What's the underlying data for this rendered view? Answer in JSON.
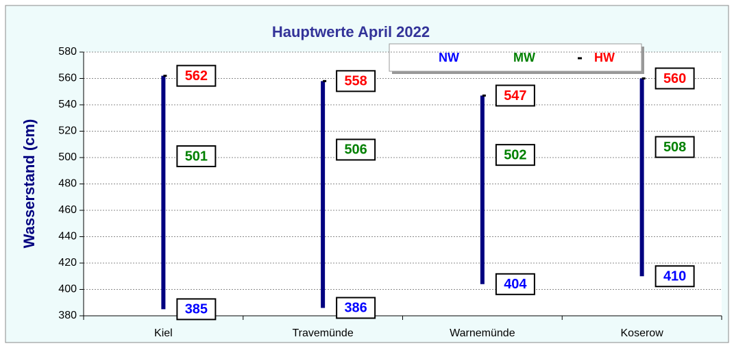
{
  "chart_data": {
    "type": "hilo",
    "title": "Hauptwerte April 2022",
    "y_label": "Wasserstand (cm)",
    "categories": [
      "Kiel",
      "Travemünde",
      "Warnemünde",
      "Koserow"
    ],
    "series": [
      {
        "name": "NW",
        "color": "#0000ff",
        "values": [
          385,
          386,
          404,
          410
        ]
      },
      {
        "name": "MW",
        "color": "#008000",
        "values": [
          501,
          506,
          502,
          508
        ]
      },
      {
        "name": "HW",
        "color": "#ff0000",
        "values": [
          562,
          558,
          547,
          560
        ]
      }
    ],
    "bar_color": "#000080",
    "ylim": [
      380,
      580
    ],
    "yticks": [
      380,
      400,
      420,
      440,
      460,
      480,
      500,
      520,
      540,
      560,
      580
    ],
    "grid": true,
    "legend": "top"
  }
}
